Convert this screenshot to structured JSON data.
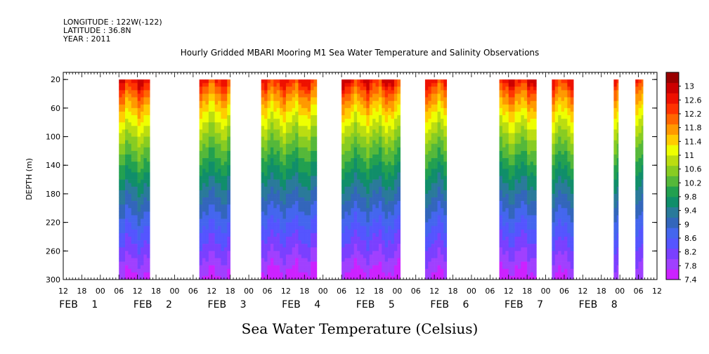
{
  "header": {
    "longitude": "LONGITUDE : 122W(-122)",
    "latitude": "LATITUDE : 36.8N",
    "year": "YEAR : 2011"
  },
  "chart_data": {
    "type": "heatmap",
    "title": "Hourly Gridded MBARI Mooring M1 Sea Water Temperature and Salinity Observations",
    "xlabel": "",
    "ylabel": "DEPTH (m)",
    "colorbar_label": "Sea Water Temperature (Celsius)",
    "x_unit": "hours since 1-FEB-2011 00:00",
    "xlim": [
      -12,
      180
    ],
    "ylim": [
      300,
      10
    ],
    "y_ticks": [
      20,
      60,
      100,
      140,
      180,
      220,
      260,
      300
    ],
    "x_tick_labels": [
      "12",
      "18",
      "00",
      "06",
      "12",
      "18",
      "00",
      "06",
      "12",
      "18",
      "00",
      "06",
      "12",
      "18",
      "00",
      "06",
      "12",
      "18",
      "00",
      "06",
      "12",
      "18",
      "00",
      "06",
      "12",
      "18",
      "00",
      "06",
      "12",
      "18",
      "00",
      "06",
      "12"
    ],
    "date_labels": [
      {
        "day": "FEB",
        "num": "1",
        "hour": 0
      },
      {
        "day": "FEB",
        "num": "2",
        "hour": 24
      },
      {
        "day": "FEB",
        "num": "3",
        "hour": 48
      },
      {
        "day": "FEB",
        "num": "4",
        "hour": 72
      },
      {
        "day": "FEB",
        "num": "5",
        "hour": 96
      },
      {
        "day": "FEB",
        "num": "6",
        "hour": 120
      },
      {
        "day": "FEB",
        "num": "7",
        "hour": 144
      },
      {
        "day": "FEB",
        "num": "8",
        "hour": 168
      }
    ],
    "colorbar_levels": [
      7.4,
      7.8,
      8.2,
      8.6,
      9,
      9.4,
      9.8,
      10.2,
      10.6,
      11,
      11.4,
      11.8,
      12.2,
      12.6,
      13
    ],
    "colorbar_colors": [
      "#cc22ff",
      "#a040ff",
      "#7a40ff",
      "#5555ff",
      "#4466ee",
      "#3366bb",
      "#2a7a9a",
      "#108e6a",
      "#22a050",
      "#55b83a",
      "#88cc22",
      "#bbdd11",
      "#eeff00",
      "#ffcc00",
      "#ff9900",
      "#ff6600",
      "#ff3300",
      "#ee1100",
      "#cc0000",
      "#990000"
    ],
    "color_range": [
      7.4,
      13.4
    ],
    "data_segments": [
      {
        "start": 6,
        "end": 16,
        "surface_temp": 12.9,
        "bottom_temp": 7.6
      },
      {
        "start": 32,
        "end": 42,
        "surface_temp": 12.6,
        "bottom_temp": 7.6
      },
      {
        "start": 52,
        "end": 70,
        "surface_temp": 12.7,
        "bottom_temp": 7.5
      },
      {
        "start": 78,
        "end": 97,
        "surface_temp": 12.8,
        "bottom_temp": 7.5
      },
      {
        "start": 105,
        "end": 112,
        "surface_temp": 12.7,
        "bottom_temp": 7.6
      },
      {
        "start": 129,
        "end": 141,
        "surface_temp": 12.8,
        "bottom_temp": 7.5
      },
      {
        "start": 146,
        "end": 153,
        "surface_temp": 12.7,
        "bottom_temp": 7.6
      },
      {
        "start": 166,
        "end": 167.5,
        "surface_temp": 12.7,
        "bottom_temp": 7.8
      },
      {
        "start": 173,
        "end": 175.5,
        "surface_temp": 12.7,
        "bottom_temp": 7.8
      }
    ]
  }
}
